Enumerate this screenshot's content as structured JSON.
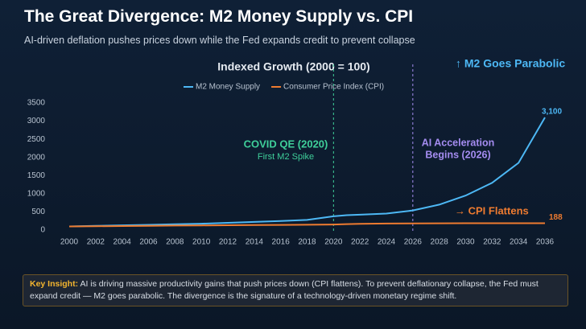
{
  "header": {
    "title": "The Great Divergence: M2 Money Supply vs. CPI",
    "subtitle": "AI-driven deflation pushes prices down while the Fed expands credit to prevent collapse"
  },
  "chart_data": {
    "type": "line",
    "title": "Indexed Growth (2000 = 100)",
    "x": [
      2000,
      2002,
      2004,
      2006,
      2008,
      2010,
      2012,
      2014,
      2016,
      2018,
      2020,
      2021,
      2022,
      2024,
      2026,
      2028,
      2030,
      2032,
      2034,
      2036
    ],
    "series": [
      {
        "name": "M2 Money Supply",
        "color": "#4db8f5",
        "values": [
          100,
          115,
          130,
          145,
          160,
          175,
          200,
          225,
          250,
          280,
          380,
          410,
          425,
          455,
          540,
          700,
          950,
          1300,
          1850,
          3100
        ],
        "value_labels": [
          null,
          null,
          null,
          null,
          null,
          null,
          null,
          null,
          null,
          null,
          null,
          null,
          null,
          null,
          null,
          null,
          null,
          null,
          null,
          "3,100"
        ]
      },
      {
        "name": "Consumer Price Index (CPI)",
        "color": "#ee7b30",
        "values": [
          100,
          105,
          111,
          117,
          124,
          128,
          134,
          138,
          141,
          147,
          153,
          162,
          172,
          180,
          184,
          186,
          187,
          188,
          188,
          188
        ],
        "value_labels": [
          null,
          null,
          null,
          null,
          null,
          null,
          null,
          null,
          null,
          null,
          null,
          null,
          null,
          null,
          null,
          null,
          null,
          null,
          null,
          "188"
        ]
      }
    ],
    "xlim": [
      2000,
      2036
    ],
    "xticks": [
      2000,
      2002,
      2004,
      2006,
      2008,
      2010,
      2012,
      2014,
      2016,
      2018,
      2020,
      2022,
      2024,
      2026,
      2028,
      2030,
      2032,
      2034,
      2036
    ],
    "ylim": [
      0,
      3500
    ],
    "yticks": [
      0,
      500,
      1000,
      1500,
      2000,
      2500,
      3000,
      3500
    ],
    "grid": false,
    "markers": [
      {
        "x": 2020,
        "color": "#3fcf9a",
        "lines": [
          "COVID QE (2020)",
          "First M2 Spike"
        ]
      },
      {
        "x": 2026,
        "color": "#a48cf0",
        "lines": [
          "AI Acceleration",
          "Begins (2026)"
        ]
      }
    ],
    "annotations": [
      {
        "text": "↑ M2 Goes Parabolic",
        "color": "#4db8f5"
      },
      {
        "text": "→ CPI Flattens",
        "color": "#ee7b30"
      }
    ]
  },
  "insight": {
    "label": "Key Insight:",
    "text": "AI is driving massive productivity gains that push prices down (CPI flattens). To prevent deflationary collapse, the Fed must expand credit — M2 goes parabolic. The divergence is the signature of a technology-driven monetary regime shift."
  }
}
